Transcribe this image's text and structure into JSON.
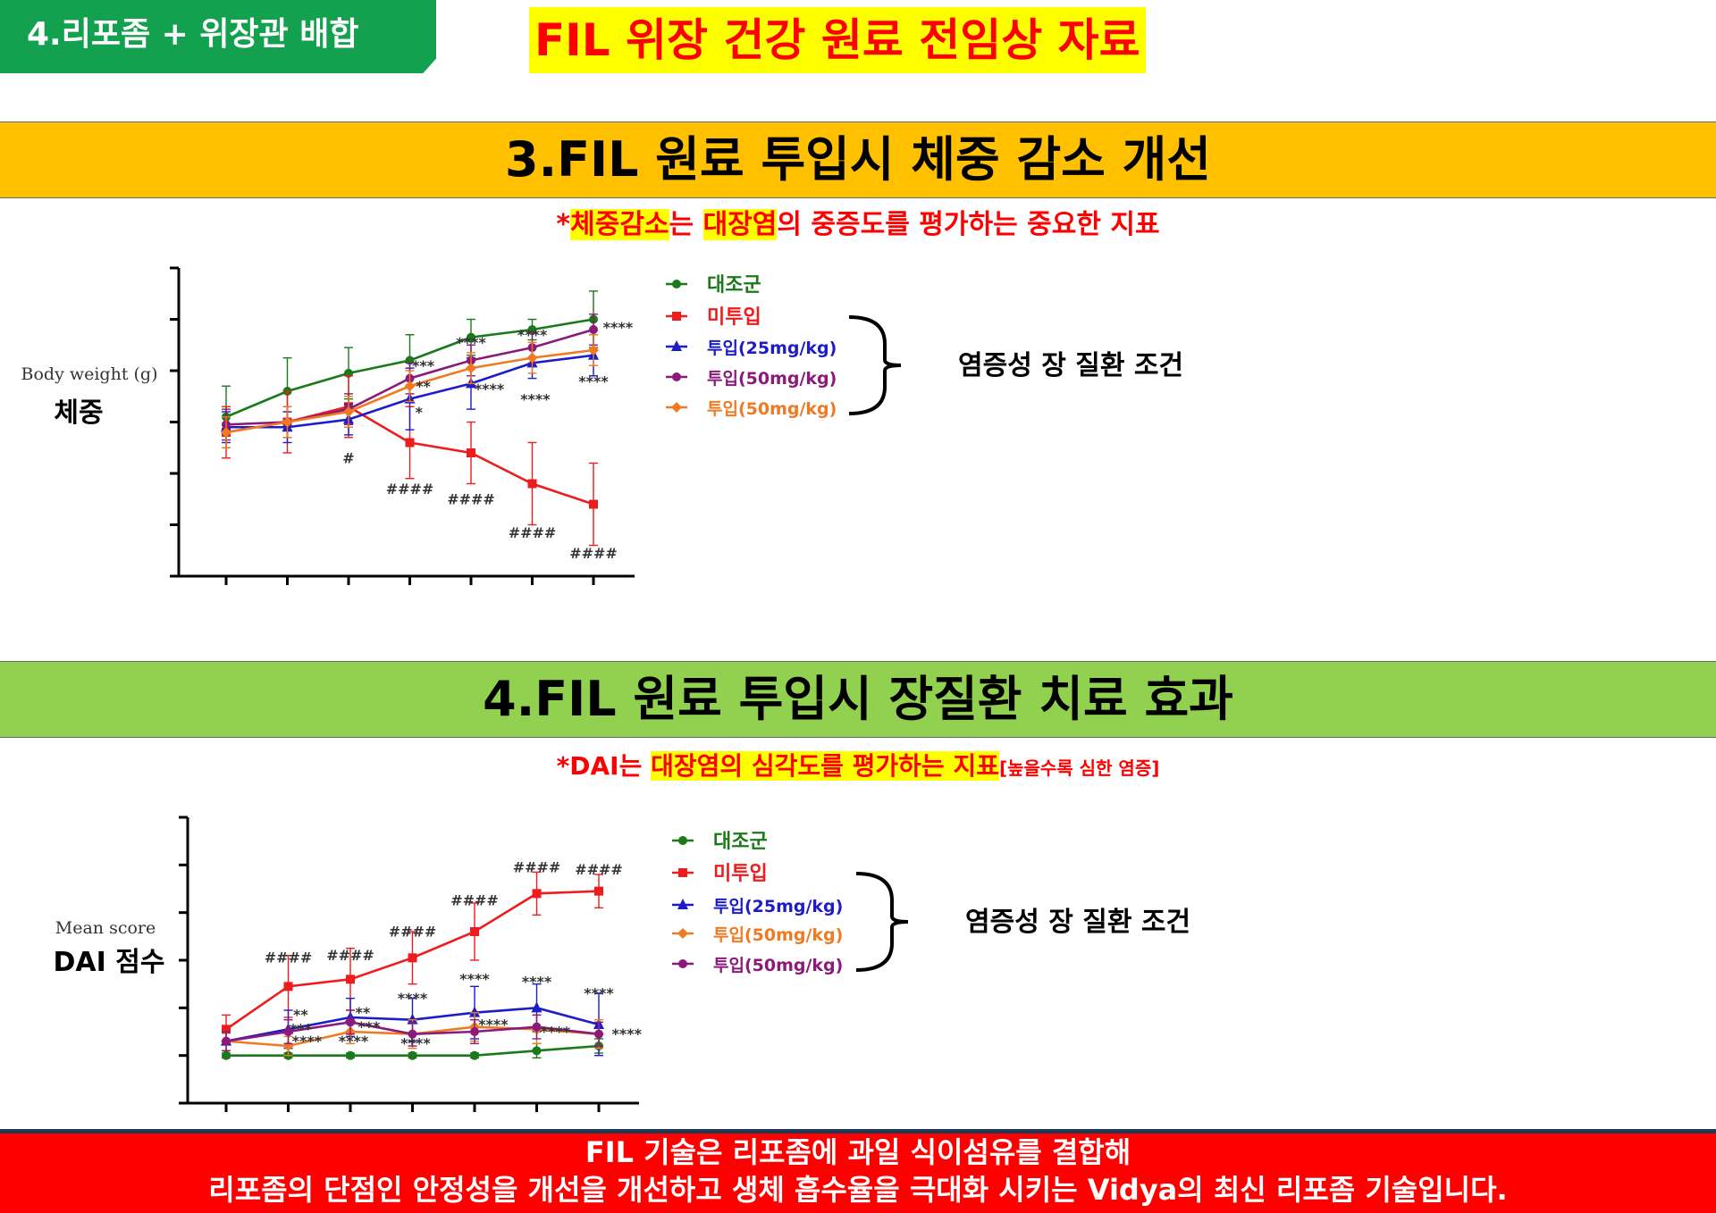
{
  "header": {
    "tag": "4.리포좀 + 위장관 배합",
    "title": "FIL 위장 건강 원료 전임상 자료"
  },
  "section1": {
    "title": "3.FIL 원료 투입시 체중 감소 개선",
    "note": {
      "star": "*",
      "hl1": "체중감소",
      "mid": "는 ",
      "hl2": "대장염",
      "rest": "의 중증도를 평가하는 중요한 지표"
    },
    "ylabel_en": "Body weight (g)",
    "ylabel_ko": "체중",
    "bracket_label": "염증성 장 질환 조건"
  },
  "section2": {
    "title": "4.FIL 원료 투입시 장질환 치료 효과",
    "note": {
      "pre": "*DAI는 ",
      "hl": "대장염의 심각도를 평가하는 지표",
      "small": "[높을수록 심한 염증]"
    },
    "ylabel_en": "Mean score",
    "ylabel_ko": "DAI 점수",
    "bracket_label": "염증성 장 질환 조건"
  },
  "footer": {
    "line1": "FIL 기술은 리포좀에 과일 식이섬유를 결합해",
    "line2": "리포좀의 단점인 안정성을 개선을 개선하고 생체 흡수율을 극대화 시키는 Vidya의 최신 리포좀 기술입니다."
  },
  "colors": {
    "control": "#1a7a1a",
    "untreated": "#ee1c1c",
    "dose25": "#1c1cc8",
    "dose50a": "#8b1a7a",
    "dose50b": "#f07a22"
  },
  "chart_data": [
    {
      "type": "line",
      "title": "",
      "xlabel": "",
      "ylabel": "Body weight (g)",
      "x": [
        1,
        2,
        3,
        4,
        5,
        6,
        7
      ],
      "ylim": [
        0,
        6
      ],
      "y_ticks": 7,
      "series": [
        {
          "name": "대조군",
          "color": "#1a7a1a",
          "marker": "circle",
          "values": [
            3.1,
            3.6,
            3.95,
            4.2,
            4.65,
            4.8,
            5.0
          ],
          "errors": [
            0.6,
            0.65,
            0.5,
            0.5,
            0.35,
            0.2,
            0.55
          ]
        },
        {
          "name": "미투입",
          "color": "#ee1c1c",
          "marker": "square",
          "values": [
            2.8,
            3.0,
            3.3,
            2.6,
            2.4,
            1.8,
            1.4
          ],
          "errors": [
            0.5,
            0.6,
            0.6,
            0.7,
            0.6,
            0.8,
            0.8
          ]
        },
        {
          "name": "투입(25mg/kg)",
          "color": "#1c1cc8",
          "marker": "triangle",
          "values": [
            2.9,
            2.9,
            3.05,
            3.45,
            3.75,
            4.15,
            4.3
          ],
          "errors": [
            0.3,
            0.3,
            0.3,
            0.6,
            0.5,
            0.3,
            0.4
          ]
        },
        {
          "name": "투입(50mg/kg)",
          "color": "#8b1a7a",
          "marker": "circle",
          "values": [
            2.95,
            3.0,
            3.25,
            3.85,
            4.2,
            4.45,
            4.8
          ],
          "errors": [
            0.3,
            0.3,
            0.3,
            0.3,
            0.3,
            0.3,
            0.3
          ]
        },
        {
          "name": "투입(50mg/kg)",
          "color": "#f07a22",
          "marker": "diamond",
          "values": [
            2.8,
            3.0,
            3.2,
            3.7,
            4.05,
            4.25,
            4.4
          ],
          "errors": [
            0.3,
            0.3,
            0.3,
            0.3,
            0.3,
            0.3,
            0.3
          ]
        }
      ],
      "annotations": [
        {
          "x": 3,
          "y": 2.2,
          "text": "#"
        },
        {
          "x": 4,
          "y": 1.6,
          "text": "####"
        },
        {
          "x": 5,
          "y": 1.4,
          "text": "####"
        },
        {
          "x": 6,
          "y": 0.75,
          "text": "####"
        },
        {
          "x": 7,
          "y": 0.35,
          "text": "####"
        },
        {
          "x": 4.22,
          "y": 4.0,
          "text": "***"
        },
        {
          "x": 4.22,
          "y": 3.6,
          "text": "**"
        },
        {
          "x": 4.15,
          "y": 3.1,
          "text": "*"
        },
        {
          "x": 5.0,
          "y": 4.45,
          "text": "****"
        },
        {
          "x": 5.3,
          "y": 3.55,
          "text": "****"
        },
        {
          "x": 6.0,
          "y": 4.6,
          "text": "****"
        },
        {
          "x": 6.05,
          "y": 3.35,
          "text": "****"
        },
        {
          "x": 7.4,
          "y": 4.75,
          "text": "****"
        },
        {
          "x": 7.0,
          "y": 3.7,
          "text": "****"
        }
      ]
    },
    {
      "type": "line",
      "title": "",
      "xlabel": "",
      "ylabel": "Mean score",
      "x": [
        1,
        2,
        3,
        4,
        5,
        6,
        7
      ],
      "ylim": [
        0,
        6
      ],
      "y_ticks": 7,
      "series": [
        {
          "name": "대조군",
          "color": "#1a7a1a",
          "marker": "circle",
          "values": [
            1.0,
            1.0,
            1.0,
            1.0,
            1.0,
            1.1,
            1.2
          ],
          "errors": [
            0.05,
            0.05,
            0.05,
            0.05,
            0.05,
            0.15,
            0.15
          ]
        },
        {
          "name": "미투입",
          "color": "#ee1c1c",
          "marker": "square",
          "values": [
            1.55,
            2.45,
            2.6,
            3.05,
            3.6,
            4.4,
            4.45
          ],
          "errors": [
            0.3,
            0.65,
            0.65,
            0.55,
            0.6,
            0.45,
            0.35
          ]
        },
        {
          "name": "투입(25mg/kg)",
          "color": "#1c1cc8",
          "marker": "triangle",
          "values": [
            1.3,
            1.55,
            1.8,
            1.75,
            1.9,
            2.0,
            1.65
          ],
          "errors": [
            0.2,
            0.4,
            0.4,
            0.45,
            0.55,
            0.5,
            0.65
          ]
        },
        {
          "name": "투입(50mg/kg)",
          "color": "#f07a22",
          "marker": "diamond",
          "values": [
            1.3,
            1.2,
            1.5,
            1.45,
            1.6,
            1.55,
            1.45
          ],
          "errors": [
            0.2,
            0.2,
            0.25,
            0.3,
            0.3,
            0.3,
            0.3
          ]
        },
        {
          "name": "투입(50mg/kg)",
          "color": "#8b1a7a",
          "marker": "circle",
          "values": [
            1.3,
            1.5,
            1.7,
            1.45,
            1.5,
            1.6,
            1.45
          ],
          "errors": [
            0.2,
            0.25,
            0.25,
            0.25,
            0.25,
            0.25,
            0.25
          ]
        }
      ],
      "annotations": [
        {
          "x": 2,
          "y": 2.95,
          "text": "####"
        },
        {
          "x": 3,
          "y": 3.0,
          "text": "####"
        },
        {
          "x": 4,
          "y": 3.5,
          "text": "####"
        },
        {
          "x": 5,
          "y": 4.15,
          "text": "####"
        },
        {
          "x": 6,
          "y": 4.85,
          "text": "####"
        },
        {
          "x": 7,
          "y": 4.8,
          "text": "####"
        },
        {
          "x": 2.2,
          "y": 1.75,
          "text": "**"
        },
        {
          "x": 2.2,
          "y": 1.45,
          "text": "***"
        },
        {
          "x": 2.3,
          "y": 1.2,
          "text": "****"
        },
        {
          "x": 3.2,
          "y": 1.8,
          "text": "**"
        },
        {
          "x": 3.3,
          "y": 1.5,
          "text": "***"
        },
        {
          "x": 3.05,
          "y": 1.2,
          "text": "****"
        },
        {
          "x": 4.0,
          "y": 2.1,
          "text": "****"
        },
        {
          "x": 4.05,
          "y": 1.15,
          "text": "****"
        },
        {
          "x": 5.0,
          "y": 2.5,
          "text": "****"
        },
        {
          "x": 5.3,
          "y": 1.55,
          "text": "****"
        },
        {
          "x": 6.0,
          "y": 2.45,
          "text": "****"
        },
        {
          "x": 6.3,
          "y": 1.4,
          "text": "****"
        },
        {
          "x": 7.0,
          "y": 2.2,
          "text": "****"
        },
        {
          "x": 7.45,
          "y": 1.35,
          "text": "****"
        }
      ]
    }
  ]
}
